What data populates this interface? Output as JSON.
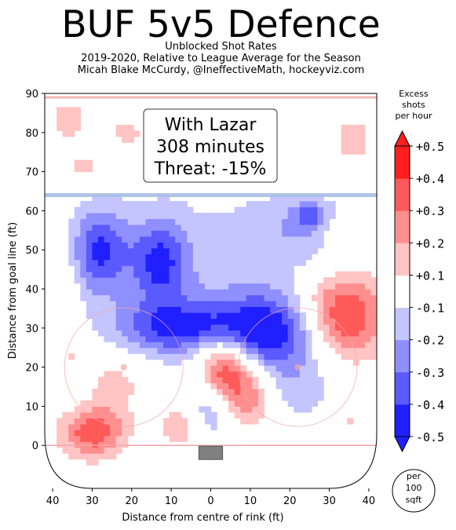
{
  "header": {
    "title": "BUF 5v5 Defence",
    "subtitle_lines": [
      "Unblocked Shot Rates",
      "2019-2020, Relative to League Average for the Season",
      "Micah Blake McCurdy, @IneffectiveMath, hockeyviz.com"
    ]
  },
  "annotation": {
    "lines": [
      "With Lazar",
      "308 minutes",
      "Threat: -15%"
    ]
  },
  "badge": {
    "lines": [
      "per",
      "100",
      "sqft"
    ]
  },
  "colors": {
    "red_strong": "#ff1f1f",
    "blue_strong": "#1f1fff",
    "line_blue": "#a9bfe3",
    "line_red": "#f4a6a6"
  },
  "chart_data": {
    "type": "heatmap",
    "xlabel": "Distance from centre of rink (ft)",
    "ylabel": "Distance from goal line (ft)",
    "xlim": [
      -42,
      42
    ],
    "ylim": [
      -11,
      90
    ],
    "x_ticks": [
      -40,
      -30,
      -20,
      -10,
      0,
      10,
      20,
      30,
      40
    ],
    "x_tick_labels": [
      "40",
      "30",
      "20",
      "10",
      "0",
      "10",
      "20",
      "30",
      "40"
    ],
    "y_ticks": [
      0,
      10,
      20,
      30,
      40,
      50,
      60,
      70,
      80,
      90
    ],
    "y_tick_labels": [
      "0",
      "10",
      "20",
      "30",
      "40",
      "50",
      "60",
      "70",
      "80",
      "90"
    ],
    "colorbar": {
      "title_lines": [
        "Excess",
        "shots",
        "per hour"
      ],
      "levels": [
        -0.5,
        -0.4,
        -0.3,
        -0.2,
        -0.1,
        0.1,
        0.2,
        0.3,
        0.4,
        0.5
      ],
      "tick_labels": [
        "-0.5",
        "-0.4",
        "-0.3",
        "-0.2",
        "-0.1",
        "+0.1",
        "+0.2",
        "+0.3",
        "+0.4",
        "+0.5"
      ],
      "bands": [
        "#1f1fff",
        "#5a5aff",
        "#8f8fff",
        "#c4c4ff",
        "#ffffff",
        "#ffc4c4",
        "#ff8f8f",
        "#ff5a5a",
        "#ff1f1f"
      ]
    },
    "blobs": [
      {
        "x": -26,
        "y": 16,
        "sx": 7,
        "sy": 5,
        "a": 1.0,
        "z": 0.17
      },
      {
        "x": -30,
        "y": 4,
        "sx": 6,
        "sy": 5,
        "a": 1.0,
        "z": 0.42
      },
      {
        "x": -7,
        "y": 5,
        "sx": 4,
        "sy": 4,
        "a": 1.0,
        "z": 0.22
      },
      {
        "x": 3,
        "y": 20,
        "sx": 5,
        "sy": 6,
        "a": 1.0,
        "z": 0.48
      },
      {
        "x": 9,
        "y": 12,
        "sx": 5,
        "sy": 6,
        "a": 1.0,
        "z": 0.27
      },
      {
        "x": 33,
        "y": 33,
        "sx": 8,
        "sy": 8,
        "a": 1.0,
        "z": 0.48
      },
      {
        "x": -36,
        "y": 83,
        "sx": 4,
        "sy": 4,
        "a": 1.0,
        "z": 0.15
      },
      {
        "x": -32,
        "y": 71,
        "sx": 4,
        "sy": 3,
        "a": 1.0,
        "z": 0.13
      },
      {
        "x": -21,
        "y": 80,
        "sx": 4,
        "sy": 4,
        "a": 1.0,
        "z": 0.13
      },
      {
        "x": 36,
        "y": 78,
        "sx": 4,
        "sy": 5,
        "a": 1.0,
        "z": 0.15
      },
      {
        "x": -38,
        "y": 40,
        "sx": 3,
        "sy": 5,
        "a": 1.0,
        "z": 0.13
      },
      {
        "x": -35,
        "y": 24,
        "sx": 4,
        "sy": 4,
        "a": 1.0,
        "z": 0.12
      },
      {
        "x": 33,
        "y": 54,
        "sx": 3,
        "sy": 3,
        "a": 1.0,
        "z": 0.2
      },
      {
        "x": 35,
        "y": 7,
        "sx": 3,
        "sy": 3,
        "a": 1.0,
        "z": 0.12
      },
      {
        "x": 16,
        "y": 29,
        "sx": 10,
        "sy": 7,
        "a": 1.0,
        "z": -0.45
      },
      {
        "x": -8,
        "y": 30,
        "sx": 12,
        "sy": 5,
        "a": 1.0,
        "z": -0.35
      },
      {
        "x": -28,
        "y": 50,
        "sx": 5,
        "sy": 8,
        "a": 1.0,
        "z": -0.38
      },
      {
        "x": -13,
        "y": 47,
        "sx": 5,
        "sy": 8,
        "a": 1.0,
        "z": -0.35
      },
      {
        "x": 0,
        "y": 10,
        "sx": 5,
        "sy": 7,
        "a": 1.0,
        "z": -0.25
      },
      {
        "x": 0,
        "y": 45,
        "sx": 20,
        "sy": 16,
        "a": 1.0,
        "z": -0.13
      },
      {
        "x": 24,
        "y": 55,
        "sx": 10,
        "sy": 7,
        "a": 1.0,
        "z": -0.15
      },
      {
        "x": -33,
        "y": 12,
        "sx": 6,
        "sy": 6,
        "a": 1.0,
        "z": -0.12
      },
      {
        "x": 23,
        "y": 14,
        "sx": 7,
        "sy": 6,
        "a": 1.0,
        "z": -0.14
      },
      {
        "x": 25,
        "y": 59,
        "sx": 3,
        "sy": 2,
        "a": 1.0,
        "z": -0.22
      }
    ]
  }
}
